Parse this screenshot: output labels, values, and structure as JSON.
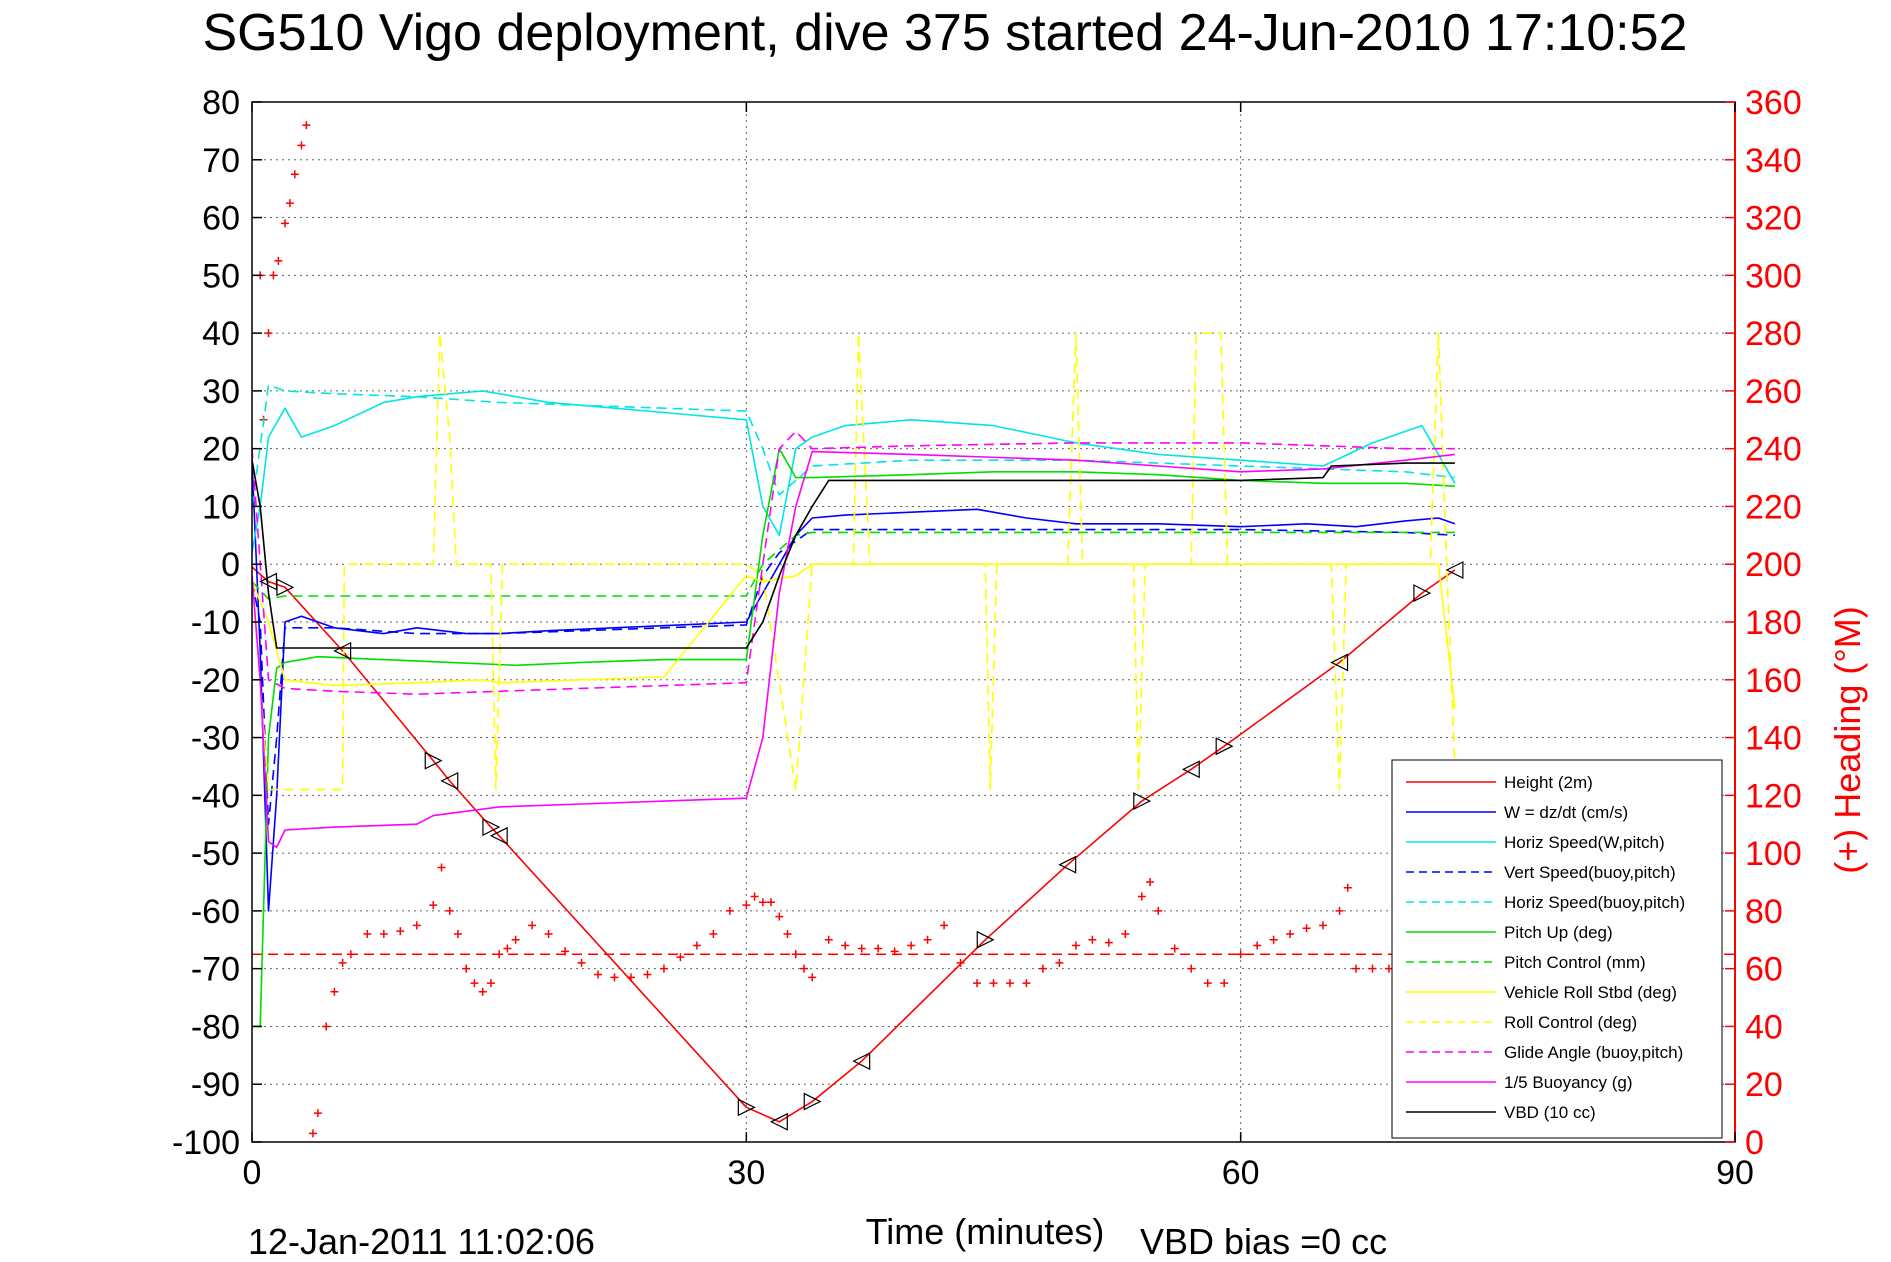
{
  "title": "SG510 Vigo deployment, dive 375 started 24-Jun-2010 17:10:52",
  "footer": {
    "timestamp": "12-Jan-2011 11:02:06",
    "vbd_bias": "VBD bias =0 cc"
  },
  "chart_data": {
    "type": "line",
    "xlabel": "Time (minutes)",
    "ylabel": "",
    "ylabel_right": "(+) Heading (°M)",
    "xlim": [
      0,
      90
    ],
    "ylim": [
      -100,
      80
    ],
    "ylim_right": [
      0,
      360
    ],
    "xticks": [
      0,
      30,
      60,
      90
    ],
    "yticks": [
      80,
      70,
      60,
      50,
      40,
      30,
      20,
      10,
      0,
      -10,
      -20,
      -30,
      -40,
      -50,
      -60,
      -70,
      -80,
      -90,
      -100
    ],
    "yticks_right": [
      360,
      340,
      320,
      300,
      280,
      260,
      240,
      220,
      200,
      180,
      160,
      140,
      120,
      100,
      80,
      60,
      40,
      20,
      0
    ],
    "grid": true,
    "legend_position": "bottom-right",
    "colors": {
      "height": "#ff0000",
      "blue": "#0000ff",
      "cyan": "#00e5e5",
      "green": "#00dd00",
      "yellow": "#ffff00",
      "magenta": "#ff00ff",
      "black": "#000000"
    },
    "series": [
      {
        "name": "Height (2m)",
        "color": "#ff0000",
        "dash": "solid",
        "x": [
          0,
          1,
          2,
          5.5,
          11,
          12,
          14.5,
          15,
          30,
          32,
          34,
          37,
          44.5,
          49.5,
          54,
          57,
          59,
          66,
          71,
          73
        ],
        "y": [
          -0.5,
          -3,
          -4,
          -15,
          -34,
          -37.5,
          -45.5,
          -47,
          -94,
          -96.5,
          -93,
          -86,
          -65,
          -52,
          -41,
          -35.5,
          -31.5,
          -17,
          -5,
          -1
        ]
      },
      {
        "name": "W = dz/dt (cm/s)",
        "color": "#0000ff",
        "dash": "solid",
        "x": [
          0,
          0.5,
          1,
          1.5,
          2,
          3,
          5,
          8,
          10,
          13,
          15,
          18,
          22,
          26,
          30,
          31,
          32,
          33,
          34,
          36,
          40,
          44,
          47,
          50,
          55,
          60,
          64,
          67,
          70,
          72,
          73
        ],
        "y": [
          18,
          -15,
          -60,
          -40,
          -10,
          -9,
          -11,
          -12,
          -11,
          -12,
          -12,
          -11.5,
          -11,
          -10.5,
          -10,
          -5,
          0,
          5,
          8,
          8.5,
          9,
          9.5,
          8,
          7,
          7,
          6.5,
          7,
          6.5,
          7.5,
          8,
          7
        ]
      },
      {
        "name": "Horiz Speed(W,pitch)",
        "color": "#00e5e5",
        "dash": "solid",
        "x": [
          0,
          0.5,
          1,
          2,
          3,
          5,
          8,
          10,
          14,
          18,
          22,
          26,
          30,
          31,
          32,
          33,
          34,
          36,
          40,
          45,
          50,
          55,
          60,
          65,
          68,
          71,
          73
        ],
        "y": [
          2,
          10,
          22,
          27,
          22,
          24,
          28,
          29,
          30,
          28,
          27,
          26,
          25,
          10,
          5,
          20,
          22,
          24,
          25,
          24,
          21,
          19,
          18,
          17,
          21,
          24,
          14
        ]
      },
      {
        "name": "Vert Speed(buoy,pitch)",
        "color": "#0000ff",
        "dash": "dashed",
        "x": [
          0,
          0.5,
          1,
          1.5,
          2,
          5,
          10,
          15,
          20,
          25,
          30,
          31,
          32,
          34,
          40,
          50,
          60,
          70,
          73
        ],
        "y": [
          -3,
          -10,
          -45,
          -30,
          -11,
          -11,
          -12,
          -12,
          -11.5,
          -11,
          -10.5,
          -2,
          2,
          6,
          6,
          6,
          6,
          5.5,
          5
        ]
      },
      {
        "name": "Horiz Speed(buoy,pitch)",
        "color": "#00e5e5",
        "dash": "dashed",
        "x": [
          0,
          1,
          2,
          5,
          10,
          15,
          20,
          25,
          30,
          31,
          32,
          34,
          40,
          50,
          60,
          70,
          73
        ],
        "y": [
          10,
          31,
          30,
          29.5,
          29,
          28,
          27.5,
          27,
          26.5,
          20,
          12,
          17,
          18,
          18,
          17,
          16,
          15
        ]
      },
      {
        "name": "Pitch Up (deg)",
        "color": "#00dd00",
        "dash": "solid",
        "x": [
          0,
          0.5,
          1,
          1.5,
          2,
          4,
          8,
          12,
          16,
          20,
          25,
          30,
          31,
          32,
          33,
          34,
          40,
          45,
          50,
          55,
          60,
          65,
          70,
          73
        ],
        "y": [
          -80,
          -80,
          -30,
          -18,
          -17,
          -16,
          -16.5,
          -17,
          -17.5,
          -17,
          -16.5,
          -16.5,
          5,
          20,
          15,
          15,
          15.5,
          16,
          16,
          15.5,
          14.5,
          14,
          14,
          13.5
        ]
      },
      {
        "name": "Pitch Control (mm)",
        "color": "#00dd00",
        "dash": "dashed",
        "x": [
          0,
          1,
          2,
          30,
          31,
          33,
          34,
          73
        ],
        "y": [
          -3,
          -6,
          -5.5,
          -5.5,
          0,
          5,
          5.5,
          5.5
        ]
      },
      {
        "name": "Vehicle Roll Stbd (deg)",
        "color": "#ffff00",
        "dash": "solid",
        "x": [
          0,
          1,
          2,
          5,
          10,
          14,
          15,
          20,
          25,
          30,
          31,
          33,
          34,
          40,
          50,
          55,
          60,
          65,
          70,
          72,
          73
        ],
        "y": [
          -3,
          -10,
          -20,
          -21,
          -20.5,
          -20,
          -20.5,
          -20,
          -19.5,
          -2,
          -3,
          -2,
          0,
          0,
          0,
          0,
          0,
          0,
          0,
          0,
          -25
        ]
      },
      {
        "name": "Roll Control (deg)",
        "color": "#ffff00",
        "dash": "dashed",
        "x": [
          0,
          1,
          1.5,
          5.5,
          5.6,
          11,
          11.4,
          12,
          12.4,
          14.5,
          14.8,
          15.2,
          30,
          31,
          33,
          34,
          36.5,
          36.8,
          37.5,
          44.5,
          44.8,
          45.2,
          49.5,
          50,
          50.4,
          53.5,
          53.8,
          54.2,
          57,
          57.3,
          58.8,
          59.2,
          65.5,
          66,
          66.4,
          71.5,
          72,
          72.5,
          73
        ],
        "y": [
          -3,
          -39,
          -39,
          -39,
          0,
          0,
          40,
          22,
          0,
          0,
          -39,
          0,
          0,
          -2,
          -39,
          0,
          0,
          40,
          0,
          0,
          -39,
          0,
          0,
          40,
          0,
          0,
          -39,
          0,
          0,
          40,
          40,
          0,
          0,
          -39,
          0,
          0,
          40,
          0,
          -35
        ]
      },
      {
        "name": "Glide Angle (buoy,pitch)",
        "color": "#ff00ff",
        "dash": "dashed",
        "x": [
          0,
          1,
          2,
          5,
          10,
          15,
          20,
          25,
          30,
          31,
          32,
          33,
          34,
          40,
          50,
          60,
          70,
          73
        ],
        "y": [
          20,
          -20,
          -21.5,
          -22,
          -22.5,
          -22,
          -21.5,
          -21,
          -20.5,
          0,
          20,
          23,
          20,
          20.5,
          21,
          21,
          20,
          20
        ]
      },
      {
        "name": "1/5 Buoyancy (g)",
        "color": "#ff00ff",
        "dash": "solid",
        "x": [
          0,
          0.5,
          1,
          1.5,
          2,
          5,
          10,
          11,
          15,
          20,
          25,
          30,
          31,
          32,
          33,
          34,
          40,
          50,
          55,
          60,
          65,
          70,
          73
        ],
        "y": [
          -2,
          -20,
          -48,
          -49,
          -46,
          -45.5,
          -45,
          -43.5,
          -42,
          -41.5,
          -41,
          -40.5,
          -30,
          -5,
          10,
          19.5,
          19,
          18,
          17,
          16,
          16.5,
          18,
          19
        ]
      },
      {
        "name": "VBD (10 cc)",
        "color": "#000000",
        "dash": "solid",
        "x": [
          0,
          0.5,
          1,
          1.5,
          30,
          31,
          32,
          33,
          34,
          35,
          60,
          65,
          65.5,
          70,
          73
        ],
        "y": [
          18,
          10,
          -5,
          -14.5,
          -14.5,
          -10,
          -2,
          5,
          10,
          14.5,
          14.5,
          15,
          17,
          17.5,
          17.5
        ]
      }
    ],
    "heading": {
      "name": "(+) Heading",
      "mean": 65,
      "x": [
        0.5,
        0.7,
        1,
        1.3,
        1.6,
        2,
        2.3,
        2.6,
        3,
        3.3,
        3.7,
        4,
        4.5,
        5,
        5.5,
        6,
        7,
        8,
        9,
        10,
        11,
        11.5,
        12,
        12.5,
        13,
        13.5,
        14,
        14.5,
        15,
        15.5,
        16,
        17,
        18,
        19,
        20,
        21,
        22,
        23,
        24,
        25,
        26,
        27,
        28,
        29,
        30,
        30.5,
        31,
        31.5,
        32,
        32.5,
        33,
        33.5,
        34,
        35,
        36,
        37,
        38,
        39,
        40,
        41,
        42,
        43,
        44,
        45,
        46,
        47,
        48,
        49,
        50,
        51,
        52,
        53,
        54,
        54.5,
        55,
        56,
        57,
        58,
        59,
        60,
        61,
        62,
        63,
        64,
        65,
        66,
        66.5,
        67,
        68,
        69,
        70,
        71,
        72,
        73
      ],
      "y": [
        300,
        250,
        280,
        300,
        305,
        318,
        325,
        335,
        345,
        352,
        3,
        10,
        40,
        52,
        62,
        65,
        72,
        72,
        73,
        75,
        82,
        95,
        80,
        72,
        60,
        55,
        52,
        55,
        65,
        67,
        70,
        75,
        72,
        66,
        62,
        58,
        57,
        57,
        58,
        60,
        64,
        68,
        72,
        80,
        82,
        85,
        83,
        83,
        78,
        72,
        65,
        60,
        57,
        70,
        68,
        67,
        67,
        66,
        68,
        70,
        75,
        62,
        55,
        55,
        55,
        55,
        60,
        62,
        68,
        70,
        69,
        72,
        85,
        90,
        80,
        67,
        60,
        55,
        55,
        65,
        68,
        70,
        72,
        74,
        75,
        80,
        88,
        60,
        60,
        60,
        68,
        70,
        72,
        75
      ]
    }
  }
}
